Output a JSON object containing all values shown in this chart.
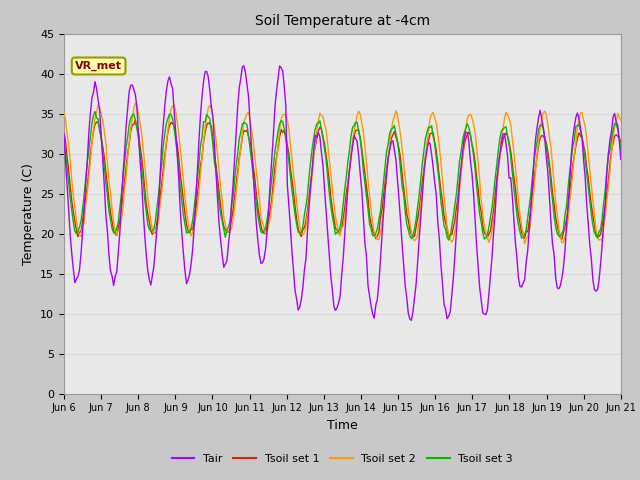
{
  "title": "Soil Temperature at -4cm",
  "xlabel": "Time",
  "ylabel": "Temperature (C)",
  "ylim": [
    0,
    45
  ],
  "yticks": [
    0,
    5,
    10,
    15,
    20,
    25,
    30,
    35,
    40,
    45
  ],
  "xtick_labels": [
    "Jun 6",
    "Jun 7",
    "Jun 8",
    "Jun 9",
    "Jun 10",
    "Jun 11",
    "Jun 12",
    "Jun 13",
    "Jun 14",
    "Jun 15",
    "Jun 16",
    "Jun 17",
    "Jun 18",
    "Jun 19",
    "Jun 20",
    "Jun 21"
  ],
  "grid_color": "#d8d8d8",
  "outer_bg_color": "#c8c8c8",
  "inner_bg_color": "#e8e8e8",
  "color_tair": "#aa00ff",
  "color_tsoil1": "#dd2200",
  "color_tsoil2": "#ff9900",
  "color_tsoil3": "#00bb00",
  "legend_label_tair": "Tair",
  "legend_label_tsoil1": "Tsoil set 1",
  "legend_label_tsoil2": "Tsoil set 2",
  "legend_label_tsoil3": "Tsoil set 3",
  "annotation_text": "VR_met",
  "figwidth": 6.4,
  "figheight": 4.8,
  "dpi": 100
}
